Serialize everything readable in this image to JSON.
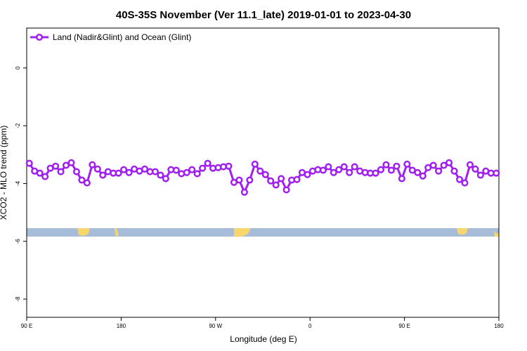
{
  "chart_data": {
    "type": "line",
    "title": "40S-35S November (Ver 11.1_late)   2019-01-01 to 2023-04-30",
    "x_label": "Longitude (deg E)",
    "y_label": "XCO2 - MLO trend (ppm)",
    "legend_position": "top-left",
    "x": [
      92.5,
      97.5,
      102.5,
      107.5,
      112.5,
      117.5,
      122.5,
      127.5,
      132.5,
      137.5,
      142.5,
      147.5,
      152.5,
      157.5,
      162.5,
      167.5,
      172.5,
      177.5,
      182.5,
      187.5,
      192.5,
      197.5,
      202.5,
      207.5,
      212.5,
      217.5,
      222.5,
      227.5,
      232.5,
      237.5,
      242.5,
      247.5,
      252.5,
      257.5,
      262.5,
      267.5,
      272.5,
      277.5,
      282.5,
      287.5,
      292.5,
      297.5,
      302.5,
      307.5,
      312.5,
      317.5,
      322.5,
      327.5,
      332.5,
      337.5,
      342.5,
      347.5,
      352.5,
      357.5,
      362.5,
      367.5,
      372.5,
      377.5,
      382.5,
      387.5,
      392.5,
      397.5,
      402.5,
      407.5,
      412.5,
      417.5,
      422.5,
      427.5,
      432.5,
      437.5,
      442.5,
      447.5,
      452.5,
      457.5,
      462.5,
      467.5,
      472.5,
      477.5,
      482.5,
      487.5,
      492.5,
      497.5,
      502.5,
      507.5,
      512.5,
      517.5,
      522.5,
      527.5,
      532.5,
      537.5
    ],
    "series": [
      {
        "name": "Land (Nadir&Glint) and Ocean (Glint)",
        "color": "#a020f0",
        "values": [
          -3.3,
          -3.57,
          -3.64,
          -3.76,
          -3.47,
          -3.4,
          -3.59,
          -3.37,
          -3.28,
          -3.59,
          -3.88,
          -3.98,
          -3.35,
          -3.5,
          -3.71,
          -3.59,
          -3.64,
          -3.64,
          -3.52,
          -3.62,
          -3.5,
          -3.57,
          -3.5,
          -3.59,
          -3.59,
          -3.71,
          -3.83,
          -3.52,
          -3.54,
          -3.66,
          -3.62,
          -3.52,
          -3.66,
          -3.47,
          -3.3,
          -3.47,
          -3.45,
          -3.42,
          -3.4,
          -3.96,
          -3.88,
          -4.3,
          -3.88,
          -3.33,
          -3.57,
          -3.69,
          -3.91,
          -4.05,
          -3.83,
          -4.22,
          -3.88,
          -3.86,
          -3.62,
          -3.69,
          -3.57,
          -3.52,
          -3.54,
          -3.42,
          -3.62,
          -3.52,
          -3.42,
          -3.62,
          -3.42,
          -3.57,
          -3.62,
          -3.64,
          -3.64,
          -3.52,
          -3.35,
          -3.54,
          -3.4,
          -3.83,
          -3.33,
          -3.54,
          -3.62,
          -3.74,
          -3.45,
          -3.37,
          -3.57,
          -3.37,
          -3.28,
          -3.57,
          -3.86,
          -3.98,
          -3.35,
          -3.5,
          -3.71,
          -3.57,
          -3.64,
          -3.64
        ]
      }
    ],
    "xlim": [
      90,
      540
    ],
    "xticks": [
      {
        "value": 90,
        "label": "90 E"
      },
      {
        "value": 180,
        "label": "180"
      },
      {
        "value": 270,
        "label": "90 W"
      },
      {
        "value": 360,
        "label": "0"
      },
      {
        "value": 450,
        "label": "90 E"
      },
      {
        "value": 540,
        "label": "180"
      }
    ],
    "ylim": [
      -8.63,
      1.38
    ],
    "yticks": [
      -8,
      -6,
      -4,
      -2,
      0
    ]
  }
}
